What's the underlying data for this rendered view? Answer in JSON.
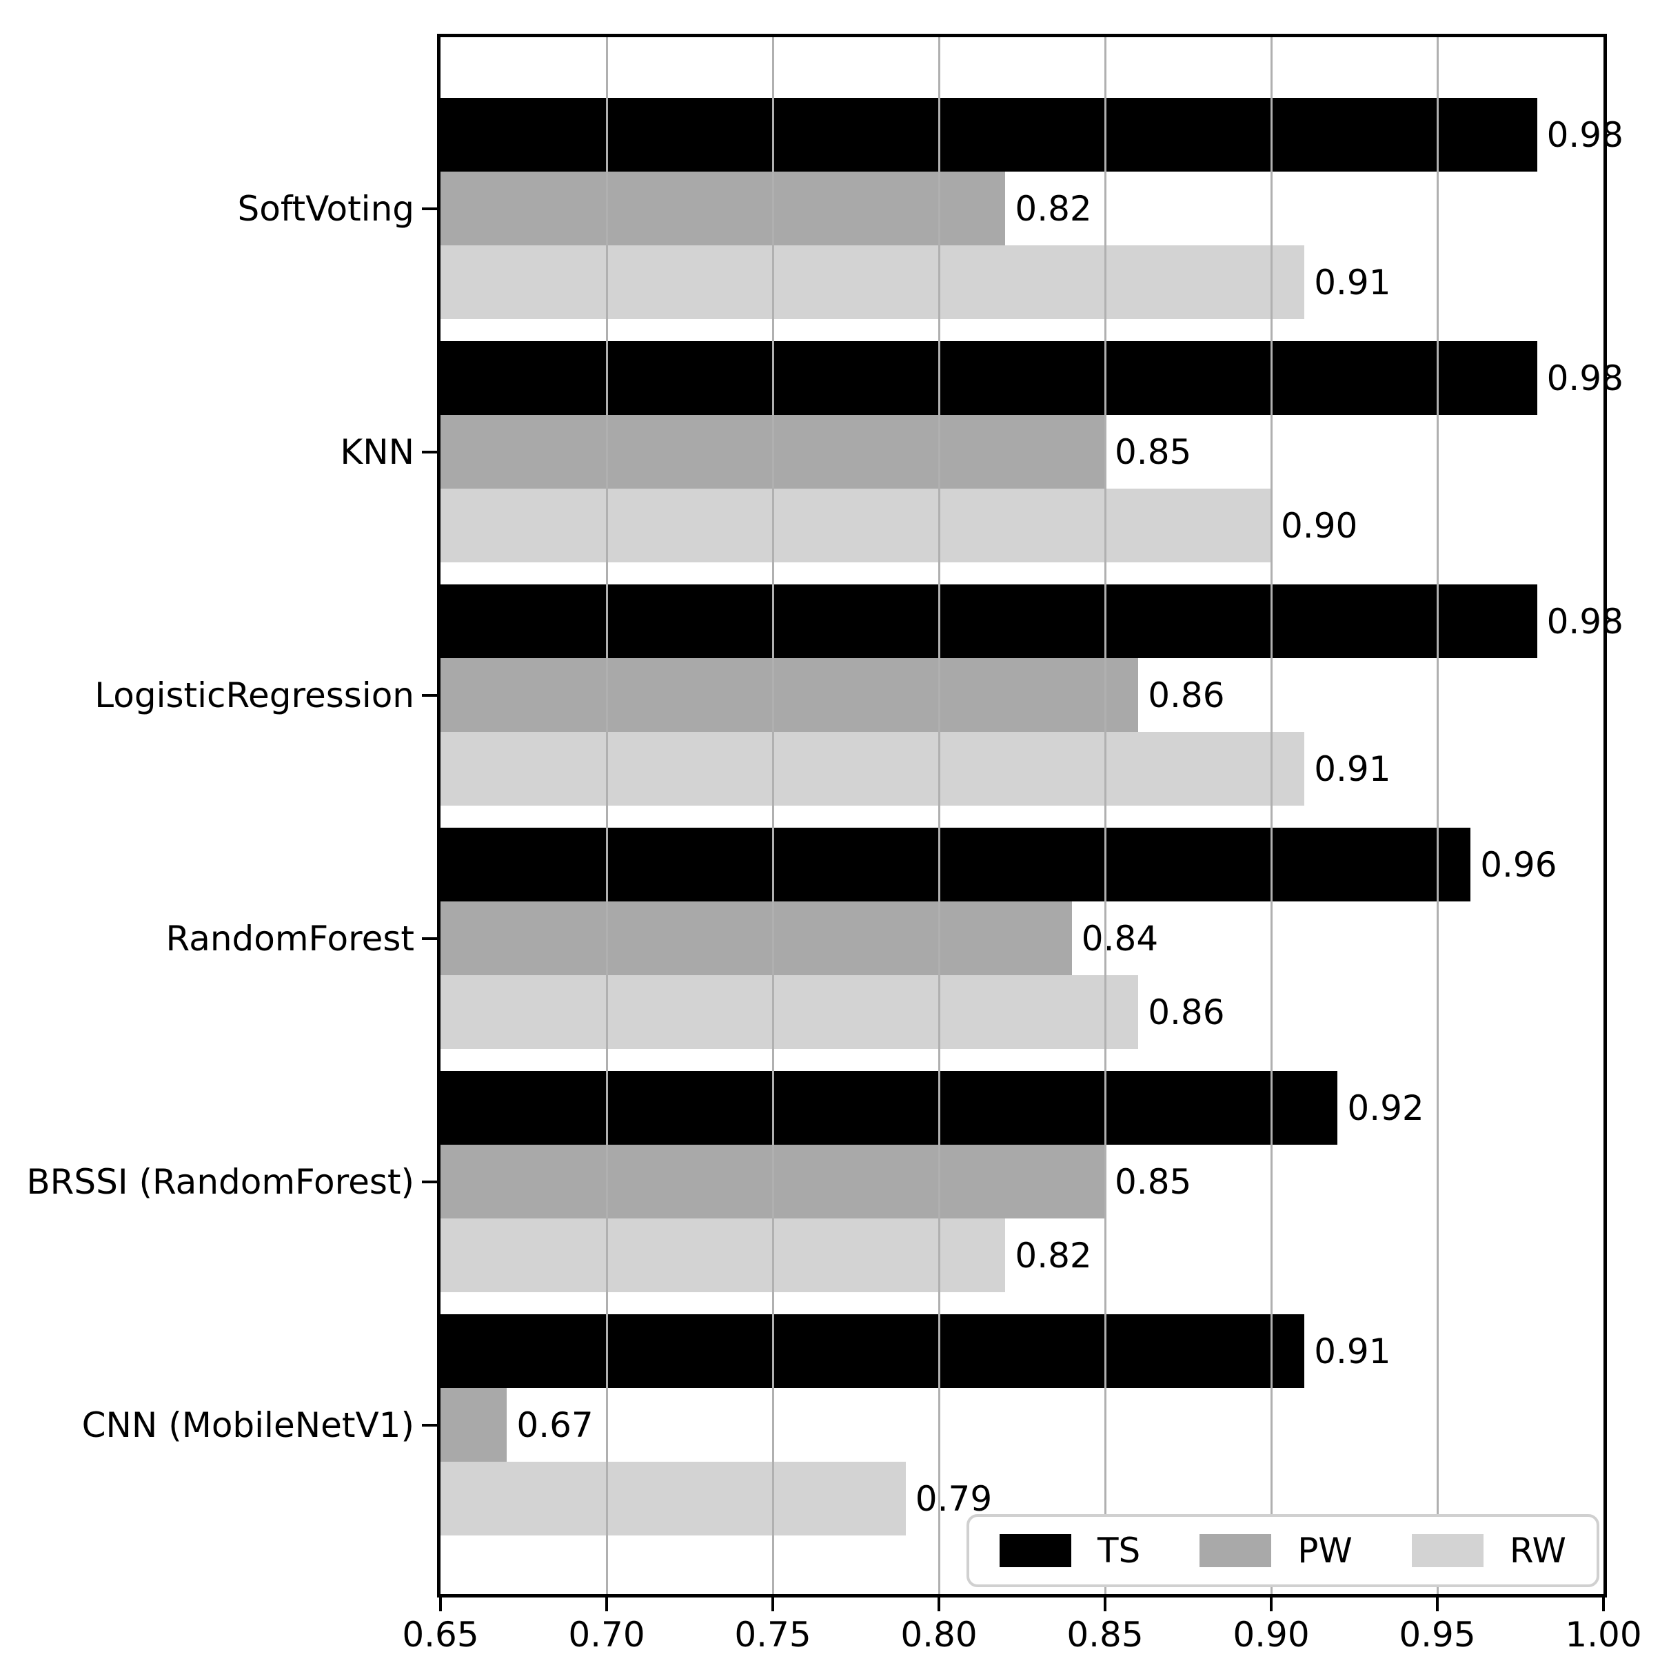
{
  "chart_data": {
    "type": "bar",
    "orientation": "horizontal",
    "title": "",
    "xlabel": "",
    "ylabel": "",
    "xlim": [
      0.65,
      1.0
    ],
    "xtick_labels": [
      "0.65",
      "0.70",
      "0.75",
      "0.80",
      "0.85",
      "0.90",
      "0.95",
      "1.00"
    ],
    "grid": true,
    "gridline_color": "#b0b0b0",
    "frame_color": "#000000",
    "background_color": "#ffffff",
    "categories": [
      "SoftVoting",
      "KNN",
      "LogisticRegression",
      "RandomForest",
      "BRSSI (RandomForest)",
      "CNN (MobileNetV1)"
    ],
    "series": [
      {
        "name": "TS",
        "color": "#000000",
        "values": [
          0.98,
          0.98,
          0.98,
          0.96,
          0.92,
          0.91
        ]
      },
      {
        "name": "PW",
        "color": "#a9a9a9",
        "values": [
          0.82,
          0.85,
          0.86,
          0.84,
          0.85,
          0.67
        ]
      },
      {
        "name": "RW",
        "color": "#d3d3d3",
        "values": [
          0.91,
          0.9,
          0.91,
          0.86,
          0.82,
          0.79
        ]
      }
    ],
    "value_label_decimals": 2,
    "legend": {
      "position": "lower right",
      "labels": [
        "TS",
        "PW",
        "RW"
      ]
    }
  }
}
